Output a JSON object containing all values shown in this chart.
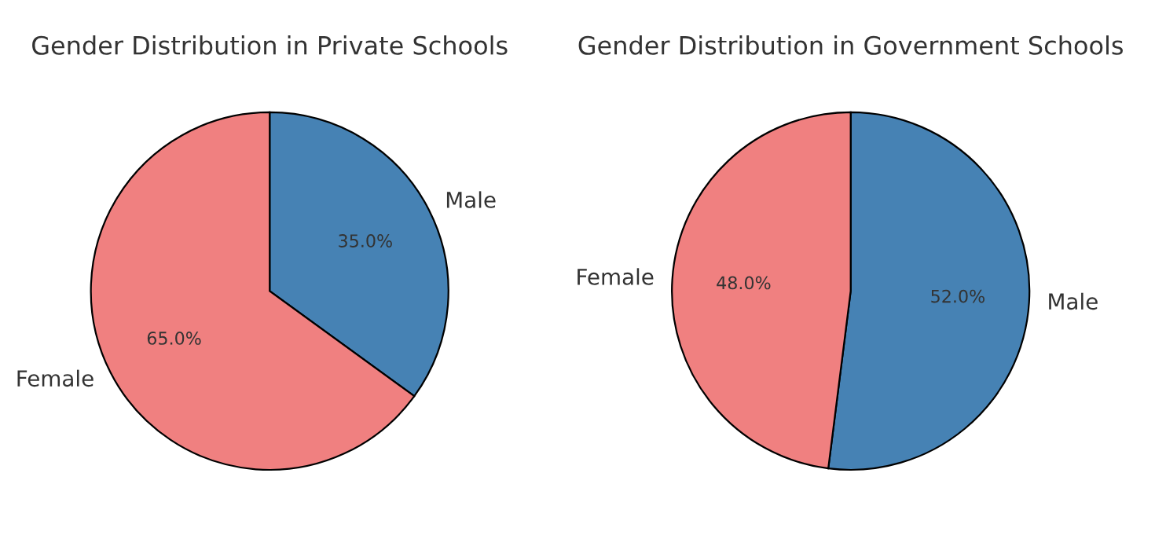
{
  "chart_data": [
    {
      "type": "pie",
      "title": "Gender Distribution in Private Schools",
      "categories": [
        "Male",
        "Female"
      ],
      "values": [
        35,
        65
      ],
      "colors": [
        "#4682b4",
        "#f08080"
      ],
      "value_labels": [
        "35.0%",
        "65.0%"
      ]
    },
    {
      "type": "pie",
      "title": "Gender Distribution in Government Schools",
      "categories": [
        "Male",
        "Female"
      ],
      "values": [
        52,
        48
      ],
      "colors": [
        "#4682b4",
        "#f08080"
      ],
      "value_labels": [
        "52.0%",
        "48.0%"
      ]
    }
  ]
}
